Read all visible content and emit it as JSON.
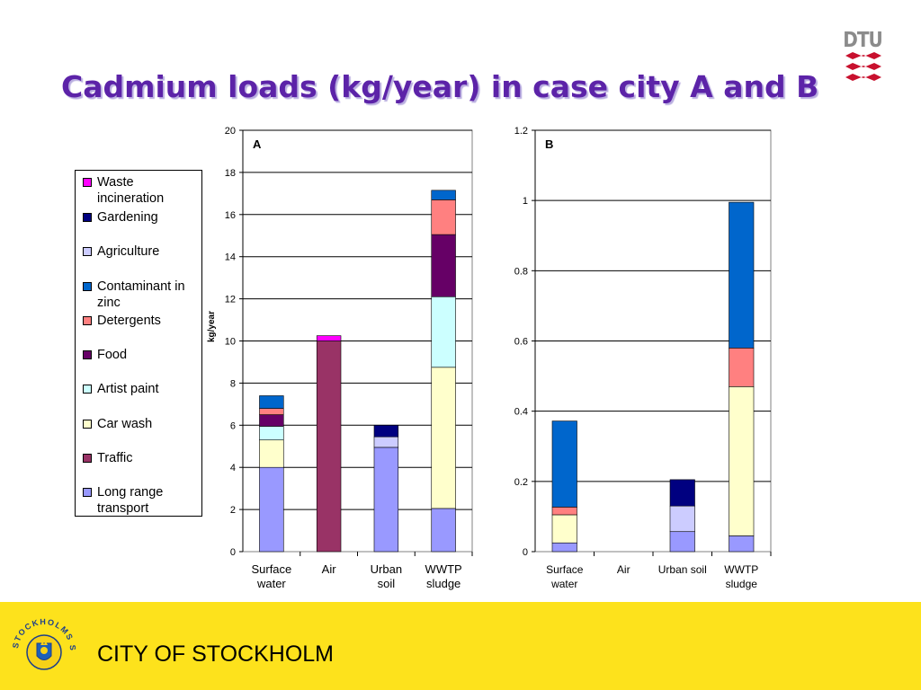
{
  "slide": {
    "title": "Cadmium loads (kg/year) in case city A and B",
    "logo_text": "DTU",
    "footer_text": "CITY OF STOCKHOLM",
    "emblem_text": "STOCKHOLMS STAD"
  },
  "legend": [
    {
      "label": "Waste incineration",
      "color": "#ff00ff"
    },
    {
      "label": "Gardening",
      "color": "#000080"
    },
    {
      "label": "Agriculture",
      "color": "#ccccff"
    },
    {
      "label": "Contaminant in zinc",
      "color": "#0066cc"
    },
    {
      "label": "Detergents",
      "color": "#ff8080"
    },
    {
      "label": "Food",
      "color": "#660066"
    },
    {
      "label": "Artist paint",
      "color": "#ccffff"
    },
    {
      "label": "Car wash",
      "color": "#ffffcc"
    },
    {
      "label": "Traffic",
      "color": "#993366"
    },
    {
      "label": "Long range transport",
      "color": "#9999ff"
    }
  ],
  "chart_data": [
    {
      "type": "bar",
      "stacked": true,
      "panel_label": "A",
      "ylabel": "kg/year",
      "ylim": [
        0,
        20
      ],
      "yticks": [
        "0",
        "2",
        "4",
        "6",
        "8",
        "10",
        "12",
        "14",
        "16",
        "18",
        "20"
      ],
      "categories": [
        [
          "Surface",
          "water"
        ],
        [
          "Air"
        ],
        [
          "Urban",
          "soil"
        ],
        [
          "WWTP",
          "sludge"
        ]
      ],
      "series": [
        {
          "name": "Long range transport",
          "color": "#9999ff",
          "values": [
            4.0,
            0,
            4.95,
            2.05
          ]
        },
        {
          "name": "Traffic",
          "color": "#993366",
          "values": [
            0,
            10.0,
            0,
            0
          ]
        },
        {
          "name": "Car wash",
          "color": "#ffffcc",
          "values": [
            1.3,
            0,
            0,
            6.7
          ]
        },
        {
          "name": "Artist paint",
          "color": "#ccffff",
          "values": [
            0.65,
            0,
            0,
            3.35
          ]
        },
        {
          "name": "Food",
          "color": "#660066",
          "values": [
            0.55,
            0,
            0,
            2.95
          ]
        },
        {
          "name": "Detergents",
          "color": "#ff8080",
          "values": [
            0.3,
            0,
            0,
            1.65
          ]
        },
        {
          "name": "Contaminant in zinc",
          "color": "#0066cc",
          "values": [
            0.6,
            0,
            0,
            0.45
          ]
        },
        {
          "name": "Agriculture",
          "color": "#ccccff",
          "values": [
            0,
            0,
            0.5,
            0
          ]
        },
        {
          "name": "Gardening",
          "color": "#000080",
          "values": [
            0,
            0,
            0.55,
            0
          ]
        },
        {
          "name": "Waste incineration",
          "color": "#ff00ff",
          "values": [
            0,
            0.25,
            0,
            0
          ]
        }
      ]
    },
    {
      "type": "bar",
      "stacked": true,
      "panel_label": "B",
      "ylim": [
        0,
        1.2
      ],
      "yticks": [
        "0",
        "0.2",
        "0.4",
        "0.6",
        "0.8",
        "1",
        "1.2"
      ],
      "categories": [
        [
          "Surface",
          "water"
        ],
        [
          "Air"
        ],
        [
          "Urban soil"
        ],
        [
          "WWTP",
          "sludge"
        ]
      ],
      "series": [
        {
          "name": "Long range transport",
          "color": "#9999ff",
          "values": [
            0.025,
            0,
            0.057,
            0.045
          ]
        },
        {
          "name": "Car wash",
          "color": "#ffffcc",
          "values": [
            0.08,
            0,
            0,
            0.425
          ]
        },
        {
          "name": "Detergents",
          "color": "#ff8080",
          "values": [
            0.022,
            0,
            0,
            0.11
          ]
        },
        {
          "name": "Contaminant in zinc",
          "color": "#0066cc",
          "values": [
            0.245,
            0,
            0,
            0.415
          ]
        },
        {
          "name": "Agriculture",
          "color": "#ccccff",
          "values": [
            0,
            0,
            0.073,
            0
          ]
        },
        {
          "name": "Gardening",
          "color": "#000080",
          "values": [
            0,
            0,
            0.075,
            0
          ]
        }
      ]
    }
  ]
}
